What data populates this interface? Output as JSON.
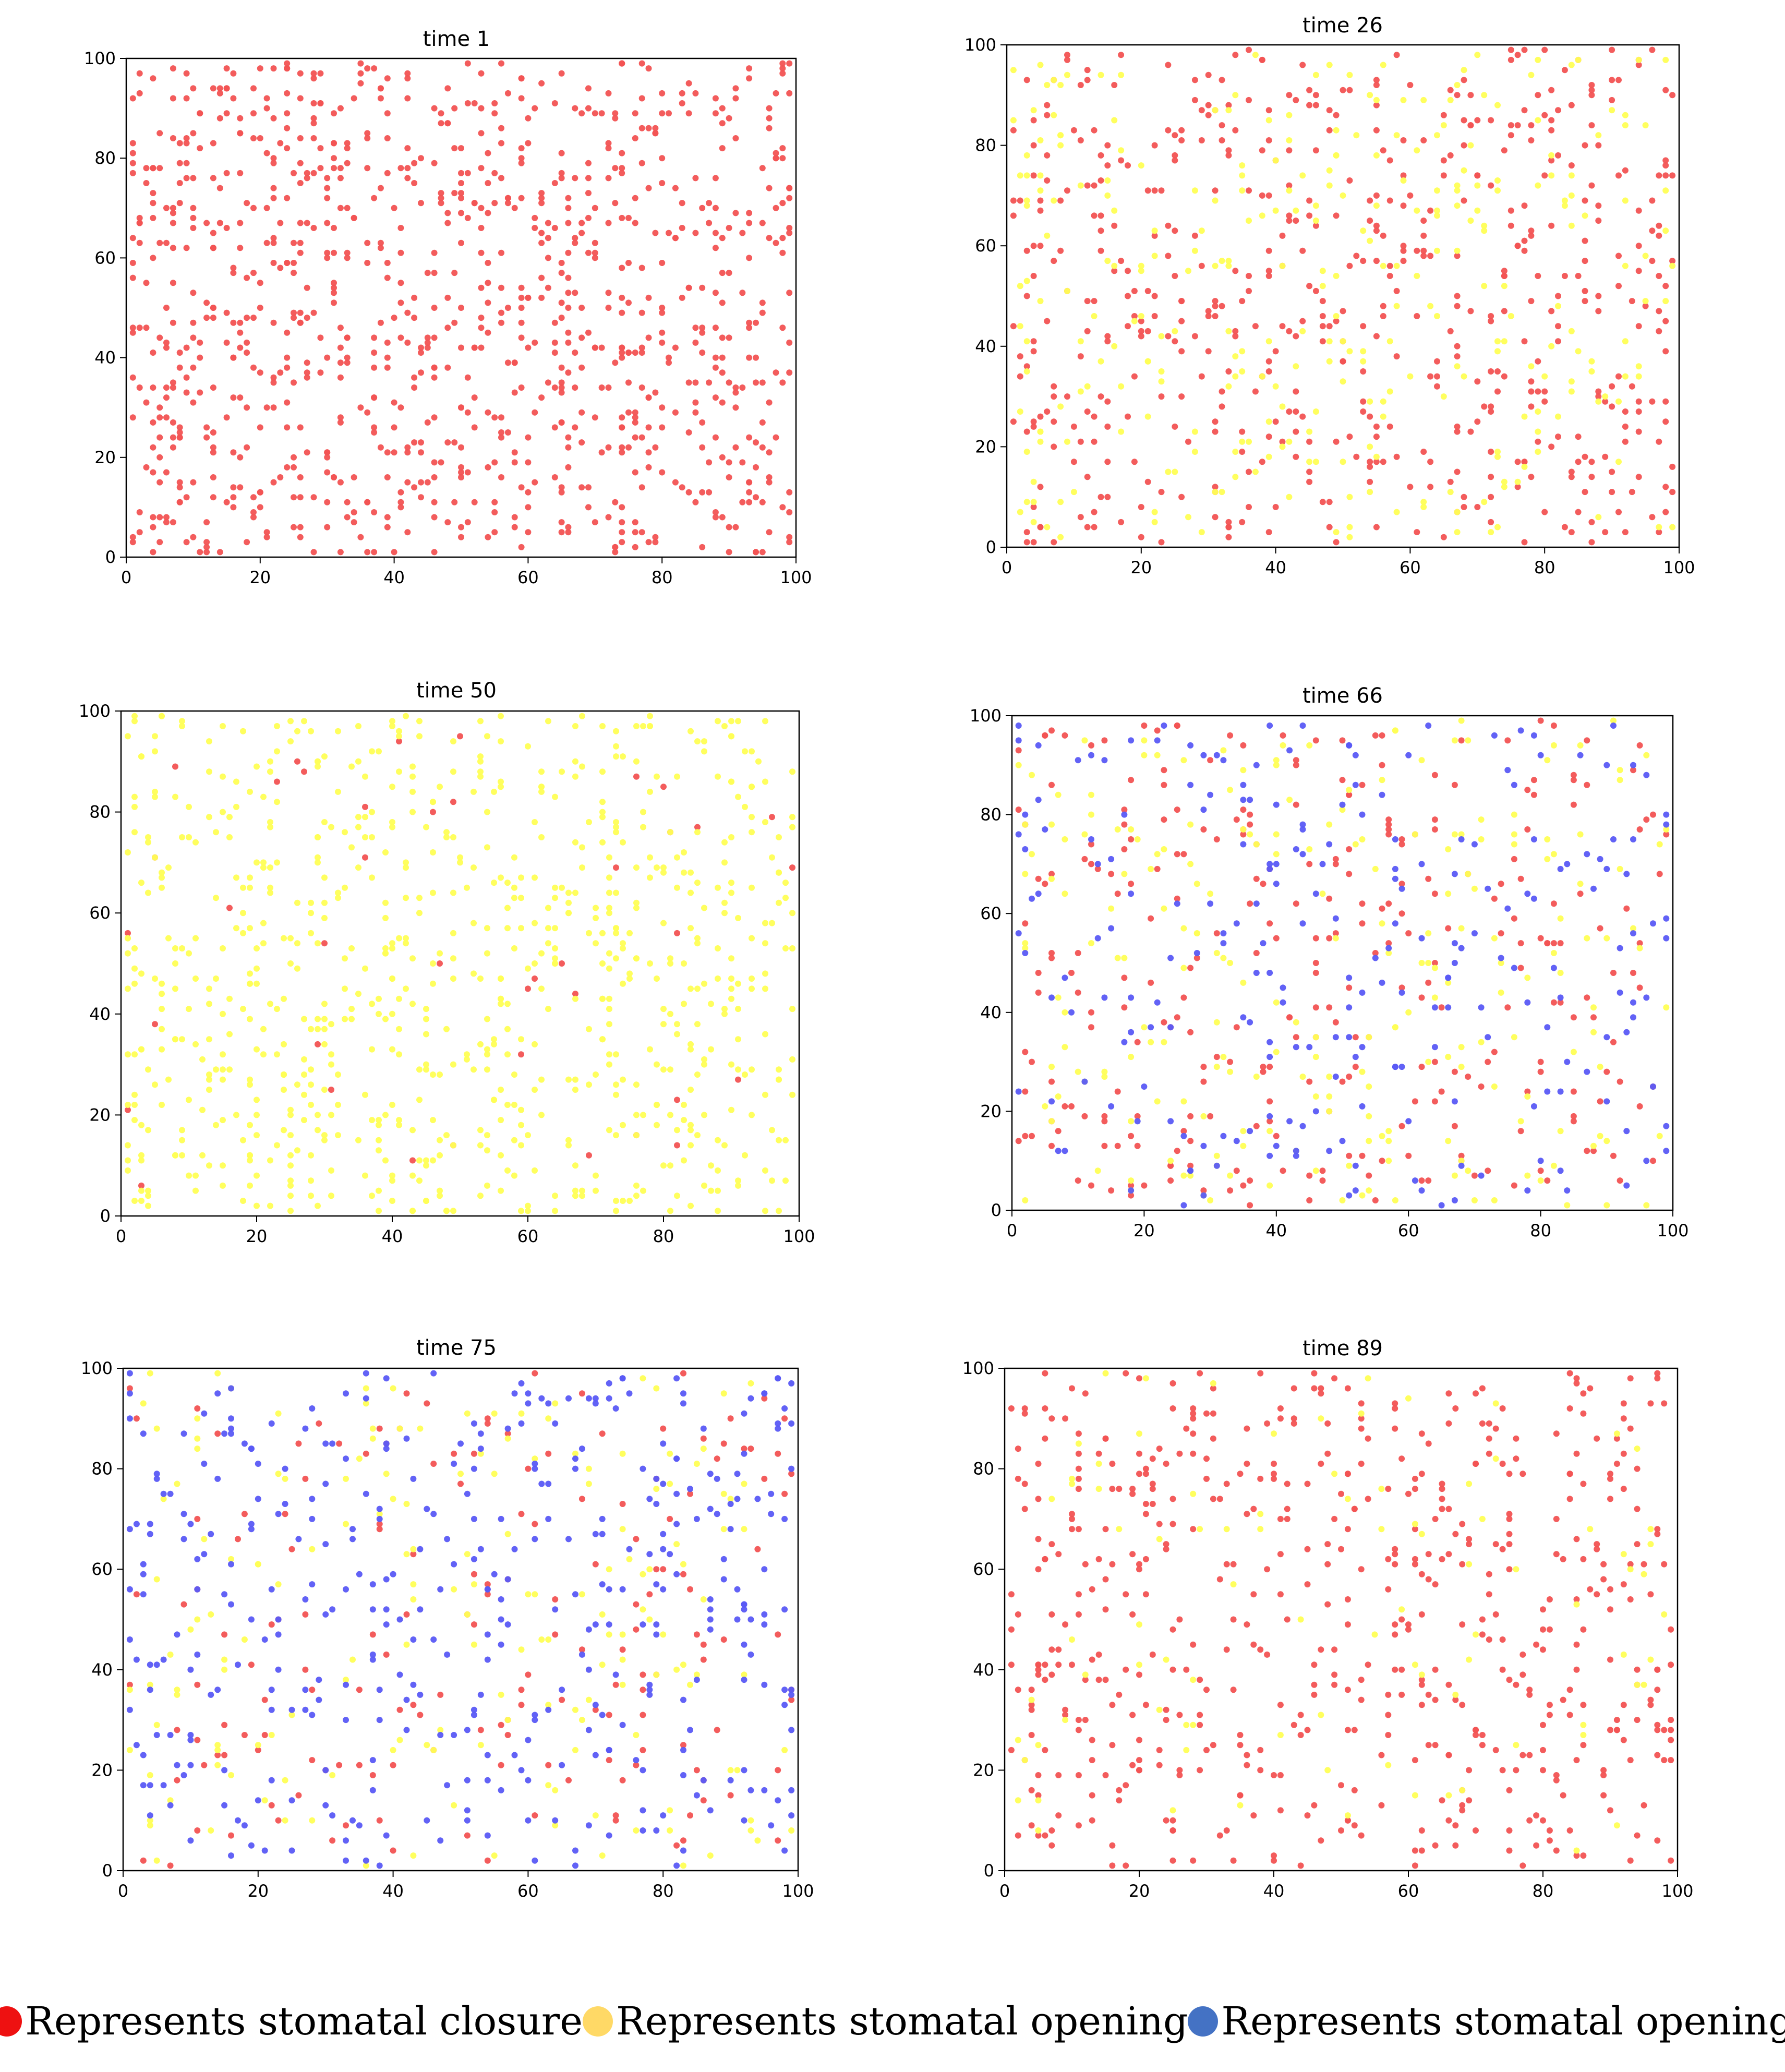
{
  "chart_data": [
    {
      "type": "scatter",
      "title": "time 1",
      "xlim": [
        0,
        100
      ],
      "ylim": [
        0,
        100
      ],
      "xticks": [
        "0",
        "20",
        "40",
        "60",
        "80",
        "100"
      ],
      "yticks": [
        "0",
        "20",
        "40",
        "60",
        "80",
        "100"
      ],
      "grid": false,
      "series": [
        {
          "color_key": "closure",
          "count": 1000
        }
      ]
    },
    {
      "type": "scatter",
      "title": "time 26",
      "xlim": [
        0,
        100
      ],
      "ylim": [
        0,
        100
      ],
      "xticks": [
        "0",
        "20",
        "40",
        "60",
        "80",
        "100"
      ],
      "yticks": [
        "0",
        "20",
        "40",
        "60",
        "80",
        "100"
      ],
      "grid": false,
      "series": [
        {
          "color_key": "closure",
          "count": 560
        },
        {
          "color_key": "opening_yellow",
          "count": 300
        }
      ]
    },
    {
      "type": "scatter",
      "title": "time 50",
      "xlim": [
        0,
        100
      ],
      "ylim": [
        0,
        100
      ],
      "xticks": [
        "0",
        "20",
        "40",
        "60",
        "80",
        "100"
      ],
      "yticks": [
        "0",
        "20",
        "40",
        "60",
        "80",
        "100"
      ],
      "grid": false,
      "series": [
        {
          "color_key": "closure",
          "count": 40
        },
        {
          "color_key": "opening_yellow",
          "count": 800
        }
      ]
    },
    {
      "type": "scatter",
      "title": "time 66",
      "xlim": [
        0,
        100
      ],
      "ylim": [
        0,
        100
      ],
      "xticks": [
        "0",
        "20",
        "40",
        "60",
        "80",
        "100"
      ],
      "yticks": [
        "0",
        "20",
        "40",
        "60",
        "80",
        "100"
      ],
      "grid": false,
      "series": [
        {
          "color_key": "closure",
          "count": 300
        },
        {
          "color_key": "opening_yellow",
          "count": 220
        },
        {
          "color_key": "opening_blue",
          "count": 230
        }
      ]
    },
    {
      "type": "scatter",
      "title": "time 75",
      "xlim": [
        0,
        100
      ],
      "ylim": [
        0,
        100
      ],
      "xticks": [
        "0",
        "20",
        "40",
        "60",
        "80",
        "100"
      ],
      "yticks": [
        "0",
        "20",
        "40",
        "60",
        "80",
        "100"
      ],
      "grid": false,
      "series": [
        {
          "color_key": "closure",
          "count": 170
        },
        {
          "color_key": "opening_yellow",
          "count": 170
        },
        {
          "color_key": "opening_blue",
          "count": 380
        }
      ]
    },
    {
      "type": "scatter",
      "title": "time 89",
      "xlim": [
        0,
        100
      ],
      "ylim": [
        0,
        100
      ],
      "xticks": [
        "0",
        "20",
        "40",
        "60",
        "80",
        "100"
      ],
      "yticks": [
        "0",
        "20",
        "40",
        "60",
        "80",
        "100"
      ],
      "grid": false,
      "series": [
        {
          "color_key": "closure",
          "count": 560
        },
        {
          "color_key": "opening_yellow",
          "count": 90
        }
      ]
    }
  ],
  "colors": {
    "closure": "#f25353",
    "opening_yellow": "#ffff55",
    "opening_blue": "#5a5af5"
  },
  "legend": {
    "items": [
      {
        "color": "#ee1111",
        "label": "Represents stomatal closure"
      },
      {
        "color": "#ffd966",
        "label": "Represents stomatal opening"
      },
      {
        "color": "#4472c4",
        "label": "Represents stomatal opening"
      }
    ]
  }
}
